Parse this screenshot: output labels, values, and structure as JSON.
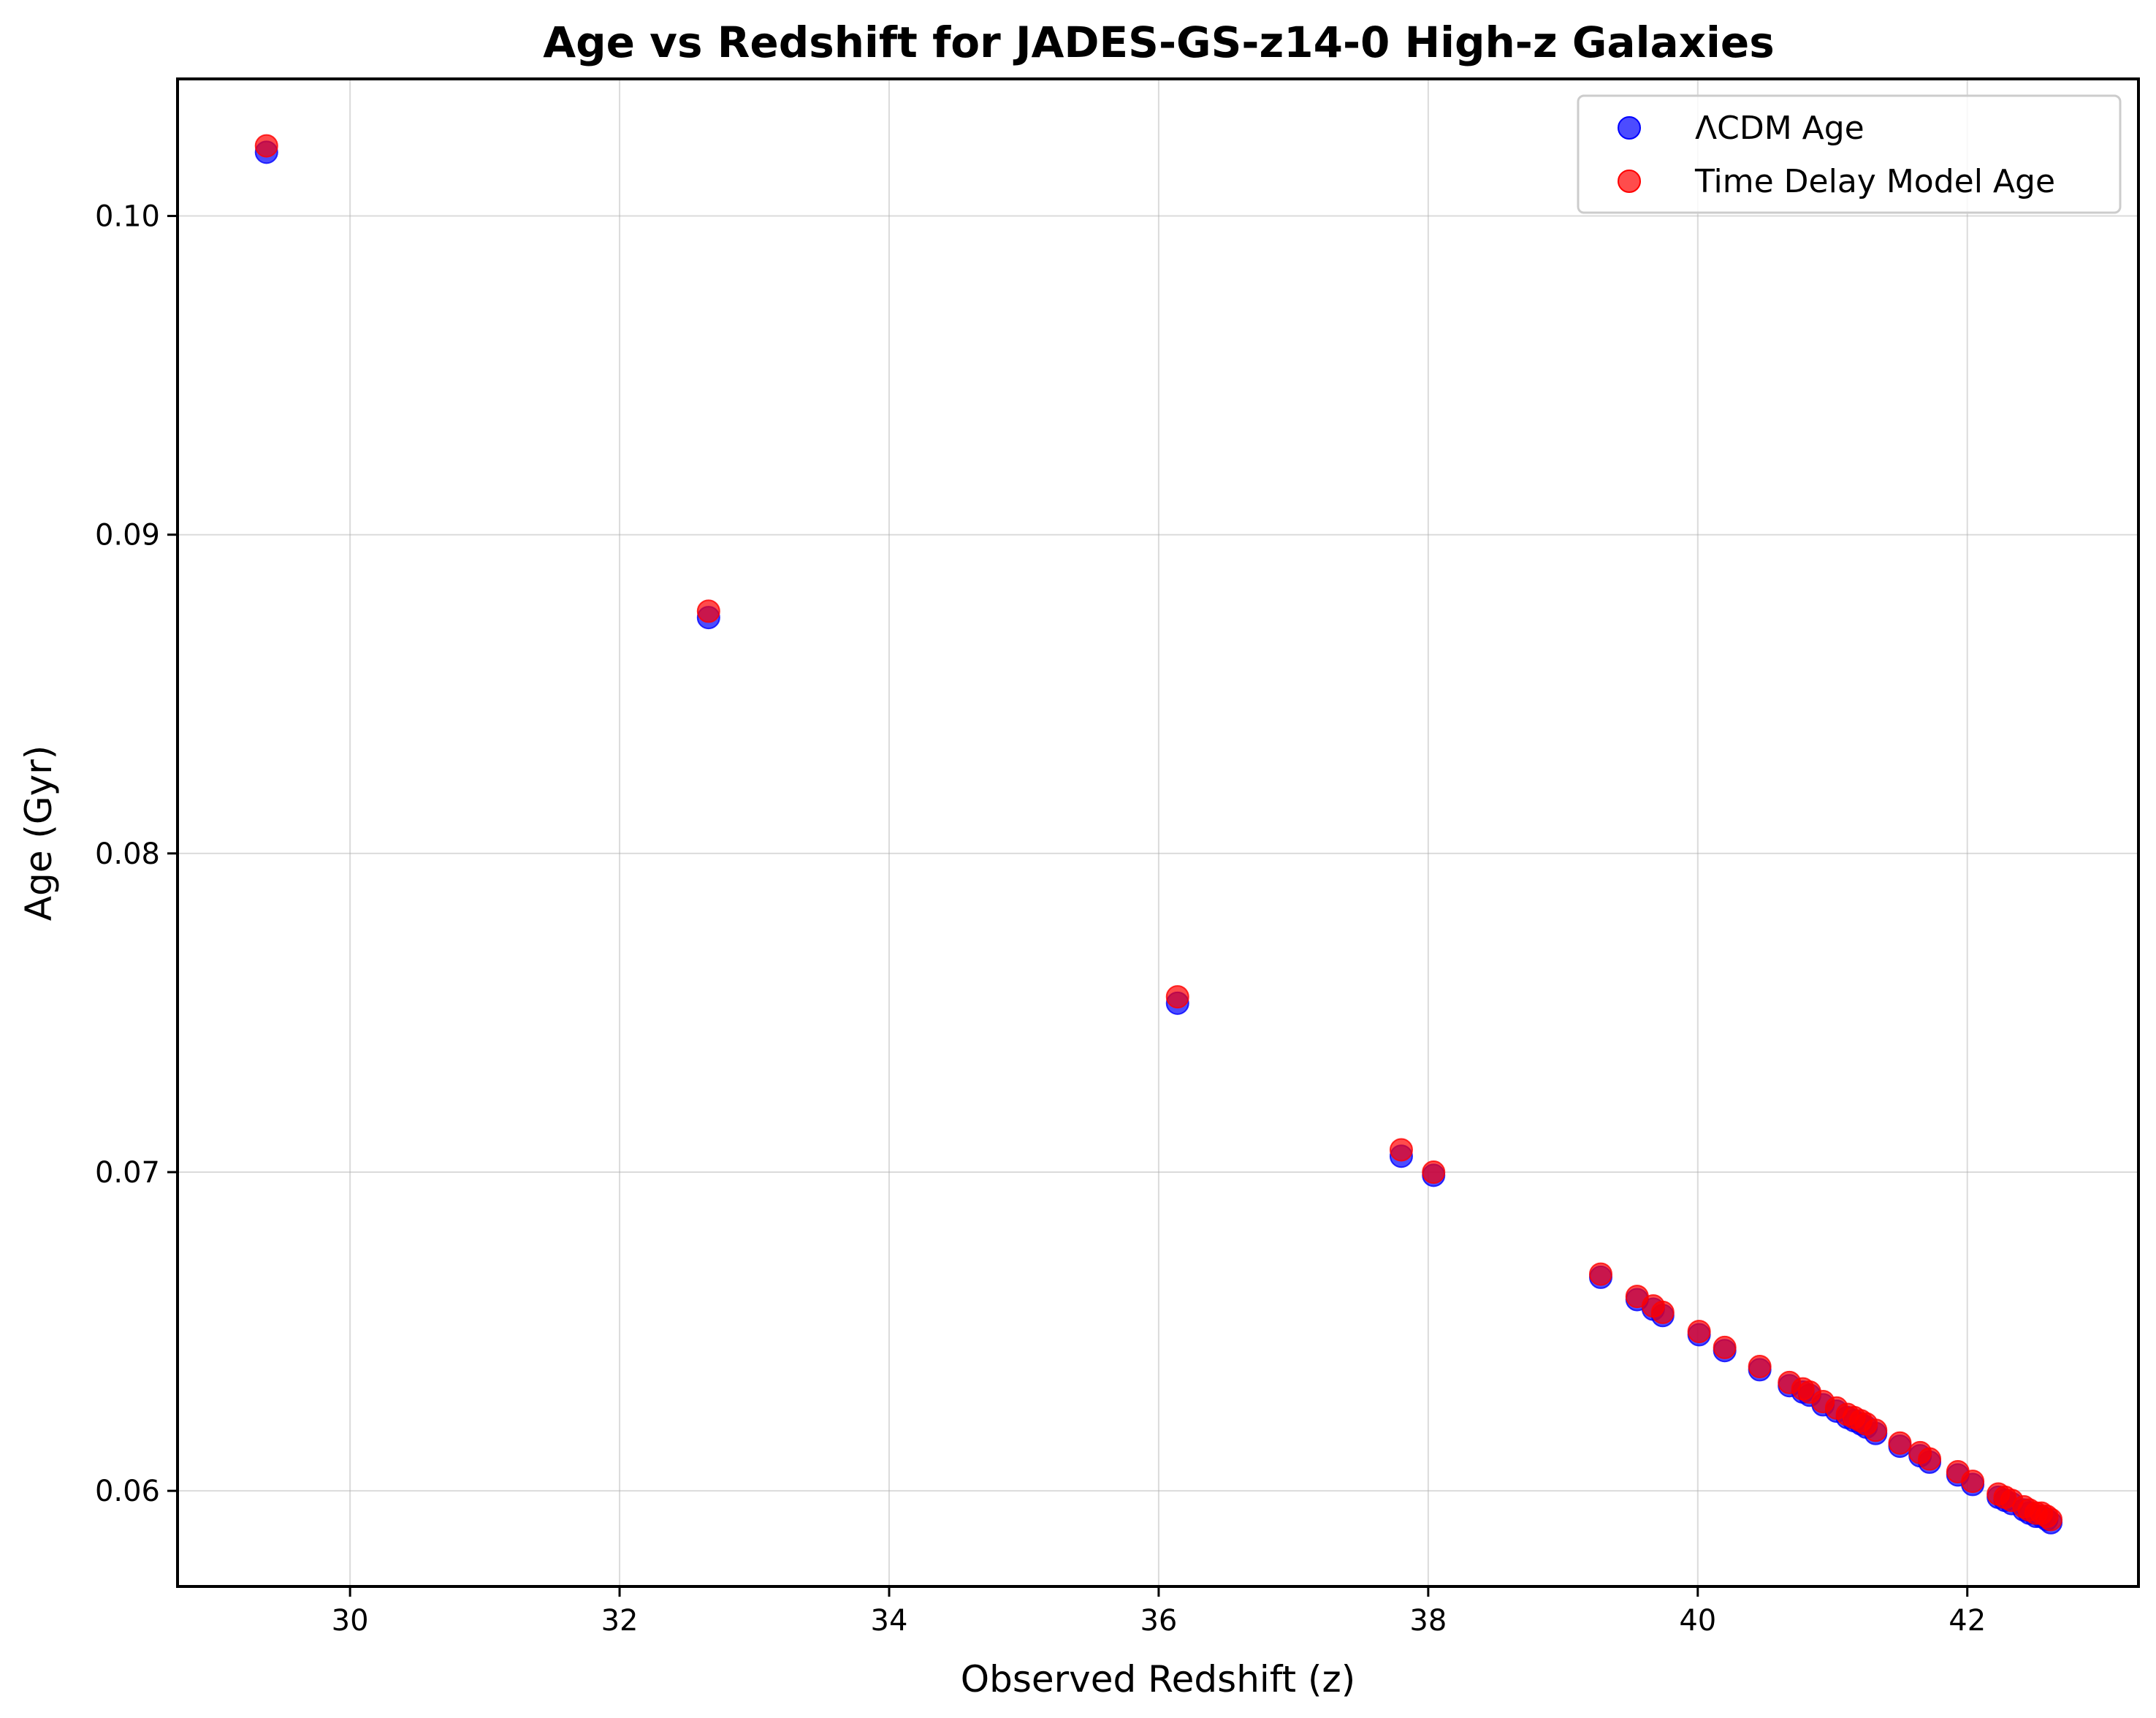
{
  "chart_data": {
    "type": "scatter",
    "title": "Age vs Redshift for JADES-GS-z14-0 High-z Galaxies",
    "xlabel": "Observed Redshift (z)",
    "ylabel": "Age (Gyr)",
    "xlim": [
      28.72,
      43.27
    ],
    "ylim": [
      0.057,
      0.1043
    ],
    "xticks": [
      "30",
      "32",
      "34",
      "36",
      "38",
      "40",
      "42"
    ],
    "yticks": [
      "0.06",
      "0.07",
      "0.08",
      "0.09",
      "0.10"
    ],
    "grid": true,
    "legend_position": "top-right",
    "series": [
      {
        "name": "ΛCDM Age",
        "color": "#0000ff",
        "points": [
          [
            29.38,
            0.102
          ],
          [
            32.66,
            0.0874
          ],
          [
            36.14,
            0.0753
          ],
          [
            37.8,
            0.0705
          ],
          [
            38.04,
            0.0699
          ],
          [
            39.28,
            0.0667
          ],
          [
            39.55,
            0.066
          ],
          [
            39.67,
            0.0657
          ],
          [
            39.74,
            0.0655
          ],
          [
            40.01,
            0.0649
          ],
          [
            40.2,
            0.0644
          ],
          [
            40.46,
            0.0638
          ],
          [
            40.68,
            0.0633
          ],
          [
            40.78,
            0.0631
          ],
          [
            40.83,
            0.063
          ],
          [
            40.93,
            0.0627
          ],
          [
            41.03,
            0.0625
          ],
          [
            41.11,
            0.0623
          ],
          [
            41.16,
            0.0622
          ],
          [
            41.21,
            0.0621
          ],
          [
            41.25,
            0.062
          ],
          [
            41.32,
            0.0618
          ],
          [
            41.5,
            0.0614
          ],
          [
            41.65,
            0.0611
          ],
          [
            41.72,
            0.0609
          ],
          [
            41.93,
            0.0605
          ],
          [
            42.04,
            0.0602
          ],
          [
            42.23,
            0.0598
          ],
          [
            42.28,
            0.0597
          ],
          [
            42.33,
            0.0596
          ],
          [
            42.42,
            0.0594
          ],
          [
            42.46,
            0.0593
          ],
          [
            42.51,
            0.0592
          ],
          [
            42.55,
            0.0592
          ],
          [
            42.59,
            0.0591
          ],
          [
            42.62,
            0.059
          ]
        ]
      },
      {
        "name": "Time Delay Model Age",
        "color": "#ff0000",
        "points": [
          [
            29.38,
            0.1022
          ],
          [
            32.66,
            0.0876
          ],
          [
            36.14,
            0.0755
          ],
          [
            37.8,
            0.0707
          ],
          [
            38.04,
            0.07
          ],
          [
            39.28,
            0.0668
          ],
          [
            39.55,
            0.0661
          ],
          [
            39.67,
            0.0658
          ],
          [
            39.74,
            0.0656
          ],
          [
            40.01,
            0.065
          ],
          [
            40.2,
            0.0645
          ],
          [
            40.46,
            0.0639
          ],
          [
            40.68,
            0.0634
          ],
          [
            40.78,
            0.0632
          ],
          [
            40.83,
            0.0631
          ],
          [
            40.93,
            0.0628
          ],
          [
            41.03,
            0.0626
          ],
          [
            41.11,
            0.0624
          ],
          [
            41.16,
            0.0623
          ],
          [
            41.21,
            0.0622
          ],
          [
            41.25,
            0.0621
          ],
          [
            41.32,
            0.0619
          ],
          [
            41.5,
            0.0615
          ],
          [
            41.65,
            0.0612
          ],
          [
            41.72,
            0.061
          ],
          [
            41.93,
            0.0606
          ],
          [
            42.04,
            0.0603
          ],
          [
            42.23,
            0.0599
          ],
          [
            42.28,
            0.0598
          ],
          [
            42.33,
            0.0597
          ],
          [
            42.42,
            0.0595
          ],
          [
            42.46,
            0.0594
          ],
          [
            42.51,
            0.0593
          ],
          [
            42.55,
            0.0593
          ],
          [
            42.59,
            0.0592
          ],
          [
            42.62,
            0.0591
          ]
        ]
      }
    ]
  }
}
